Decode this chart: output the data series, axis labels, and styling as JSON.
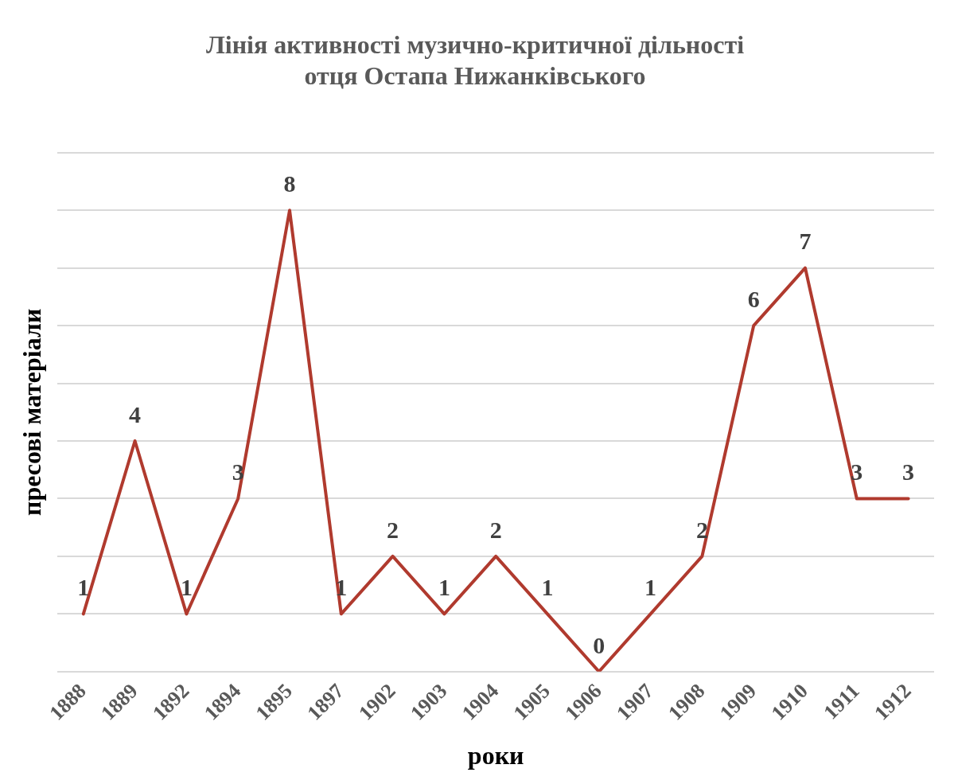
{
  "chart_data": {
    "type": "line",
    "title": "Лінія активності музично-критичної дільності\nотця Остапа Нижанківського",
    "xlabel": "роки",
    "ylabel": "пресові матеріали",
    "categories": [
      "1888",
      "1889",
      "1892",
      "1894",
      "1895",
      "1897",
      "1902",
      "1903",
      "1904",
      "1905",
      "1906",
      "1907",
      "1908",
      "1909",
      "1910",
      "1911",
      "1912"
    ],
    "values": [
      1,
      4,
      1,
      3,
      8,
      1,
      2,
      1,
      2,
      1,
      0,
      1,
      2,
      6,
      7,
      3,
      3
    ],
    "color": "#b03a2e",
    "ylim": [
      0,
      9
    ],
    "yticks": [
      {
        "value": 0,
        "label": null
      },
      {
        "value": 1,
        "label": null
      },
      {
        "value": 2,
        "label": null
      },
      {
        "value": 3,
        "label": null
      },
      {
        "value": 4,
        "label": null
      },
      {
        "value": 5,
        "label": null
      },
      {
        "value": 6,
        "label": null
      },
      {
        "value": 7,
        "label": null
      },
      {
        "value": 8,
        "label": null
      },
      {
        "value": 9,
        "label": null
      }
    ],
    "grid": "y",
    "tick_labels": "x",
    "data_labels": true,
    "marker": "none",
    "line_style": "solid"
  }
}
